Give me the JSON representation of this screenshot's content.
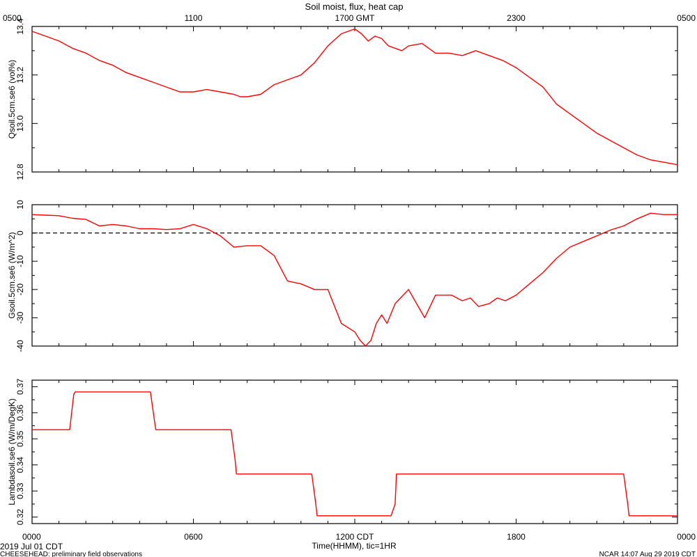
{
  "title": "Soil moist, flux, heat cap",
  "top_axis": {
    "ticks": [
      {
        "label": "0500",
        "hour": 0
      },
      {
        "label": "1100",
        "hour": 6
      },
      {
        "label": "1700 GMT",
        "hour": 12
      },
      {
        "label": "2300",
        "hour": 18
      },
      {
        "label": "0500",
        "hour": 24
      }
    ]
  },
  "bottom_axis": {
    "ticks": [
      {
        "label": "0000",
        "hour": 0
      },
      {
        "label": "0600",
        "hour": 6
      },
      {
        "label": "1200 CDT",
        "hour": 12
      },
      {
        "label": "1800",
        "hour": 18
      },
      {
        "label": "0000",
        "hour": 24
      }
    ],
    "xlabel": "Time(HHMM), tic=1HR"
  },
  "footer": {
    "date": "2019 Jul 01 CDT",
    "project": "CHEESEHEAD: preliminary field observations",
    "stamp": "NCAR 14:07 Aug 29 2019 CDT"
  },
  "colors": {
    "series": "#ff0000",
    "axis": "#000000"
  },
  "chart_data": [
    {
      "type": "line",
      "ylabel": "Qsoil.5cm.se6 (vol%)",
      "ylim": [
        12.8,
        13.4
      ],
      "yticks": [
        "12.8",
        "13.0",
        "13.2",
        "13.4"
      ],
      "xlim": [
        0,
        24
      ],
      "series": [
        {
          "x": [
            0,
            0.5,
            1,
            1.5,
            2,
            2.5,
            3,
            3.5,
            4,
            4.5,
            5,
            5.5,
            6,
            6.5,
            7,
            7.5,
            7.75,
            8,
            8.5,
            9,
            9.5,
            10,
            10.5,
            11,
            11.5,
            12,
            12.25,
            12.5,
            12.75,
            13,
            13.25,
            13.5,
            13.75,
            14,
            14.5,
            15,
            15.5,
            16,
            16.5,
            17,
            17.5,
            18,
            18.5,
            19,
            19.5,
            20,
            20.5,
            21,
            21.5,
            22,
            22.5,
            23,
            23.5,
            24
          ],
          "y": [
            13.38,
            13.36,
            13.34,
            13.31,
            13.29,
            13.26,
            13.24,
            13.21,
            13.19,
            13.17,
            13.15,
            13.13,
            13.13,
            13.14,
            13.13,
            13.12,
            13.11,
            13.11,
            13.12,
            13.16,
            13.18,
            13.2,
            13.25,
            13.32,
            13.37,
            13.39,
            13.37,
            13.34,
            13.36,
            13.35,
            13.32,
            13.31,
            13.3,
            13.32,
            13.33,
            13.29,
            13.29,
            13.28,
            13.3,
            13.28,
            13.26,
            13.23,
            13.19,
            13.15,
            13.08,
            13.04,
            13.0,
            12.96,
            12.93,
            12.9,
            12.87,
            12.85,
            12.84,
            12.83
          ]
        }
      ]
    },
    {
      "type": "line",
      "ylabel": "Gsoil.5cm.se6 (W/m^2)",
      "ylim": [
        -40,
        10
      ],
      "yticks": [
        "-40",
        "-30",
        "-20",
        "-10",
        "0",
        "10"
      ],
      "xlim": [
        0,
        24
      ],
      "reference_line": 0,
      "series": [
        {
          "x": [
            0,
            0.5,
            1,
            1.5,
            2,
            2.5,
            3,
            3.5,
            4,
            4.5,
            5,
            5.5,
            6,
            6.5,
            7,
            7.5,
            8,
            8.5,
            9,
            9.5,
            10,
            10.5,
            11,
            11.25,
            11.5,
            12,
            12.2,
            12.4,
            12.6,
            12.8,
            13,
            13.2,
            13.5,
            13.8,
            14,
            14.3,
            14.6,
            15,
            15.3,
            15.6,
            16,
            16.3,
            16.6,
            17,
            17.3,
            17.6,
            18,
            18.5,
            19,
            19.5,
            20,
            20.5,
            21,
            21.5,
            22,
            22.5,
            23,
            23.5,
            24
          ],
          "y": [
            6.5,
            6.3,
            6.1,
            5.2,
            4.8,
            2.5,
            3.0,
            2.5,
            1.5,
            1.5,
            1.2,
            1.5,
            3.0,
            1.5,
            -1.0,
            -5.0,
            -4.5,
            -4.5,
            -8.0,
            -17.0,
            -18.0,
            -20.0,
            -20.0,
            -26.0,
            -32.0,
            -35.0,
            -38.0,
            -40.0,
            -38.0,
            -32.0,
            -29.0,
            -32.0,
            -25.0,
            -22.0,
            -20.0,
            -25.0,
            -30.0,
            -22.0,
            -22.0,
            -22.0,
            -24.0,
            -23.0,
            -26.0,
            -25.0,
            -23.0,
            -24.0,
            -22.0,
            -18.0,
            -14.0,
            -9.0,
            -5.0,
            -3.0,
            -1.0,
            1.0,
            2.5,
            5.0,
            7.0,
            6.5,
            6.5
          ]
        }
      ]
    },
    {
      "type": "line",
      "ylabel": "Lambdasoil.se6 (W/m/DegK)",
      "ylim": [
        0.3175,
        0.3725
      ],
      "yticks": [
        "0.32",
        "0.33",
        "0.34",
        "0.35",
        "0.36",
        "0.37"
      ],
      "xlim": [
        0,
        24
      ],
      "series": [
        {
          "x": [
            0,
            1.4,
            1.55,
            1.6,
            4.4,
            4.55,
            4.6,
            7.4,
            7.55,
            7.6,
            10.4,
            10.55,
            10.6,
            13.35,
            13.5,
            13.55,
            22.0,
            22.15,
            22.2,
            24
          ],
          "y": [
            0.3535,
            0.3535,
            0.367,
            0.368,
            0.368,
            0.357,
            0.3535,
            0.3535,
            0.342,
            0.3365,
            0.3365,
            0.325,
            0.3205,
            0.3205,
            0.325,
            0.3365,
            0.3365,
            0.325,
            0.3205,
            0.3205
          ]
        }
      ]
    }
  ]
}
